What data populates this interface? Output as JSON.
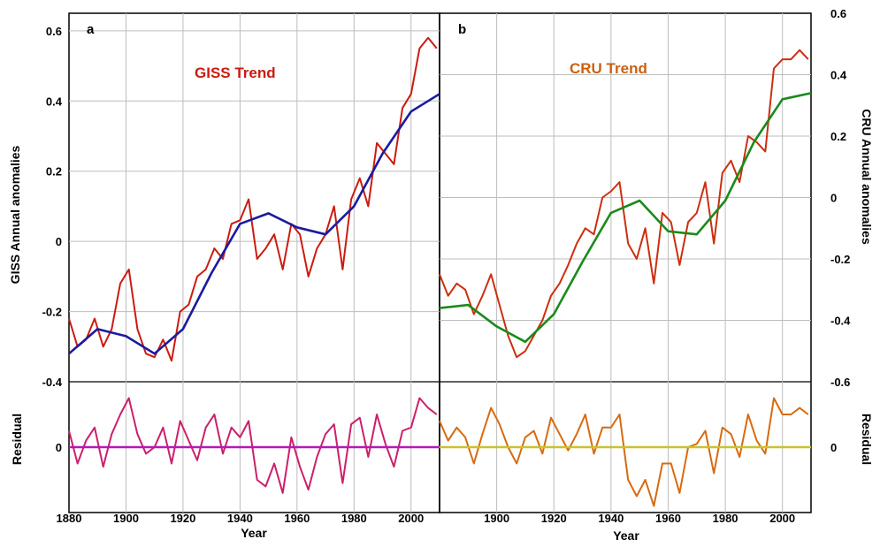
{
  "chart_data": [
    {
      "panel": "a",
      "type": "line",
      "title": "GISS Trend",
      "xlabel": "Year",
      "ylabel": "GISS Annual anomalies",
      "xlim": [
        1880,
        2010
      ],
      "ylim": [
        -0.4,
        0.65
      ],
      "x_ticks": [
        1880,
        1900,
        1920,
        1940,
        1960,
        1980,
        2000
      ],
      "y_ticks": [
        -0.4,
        -0.2,
        0,
        0.2,
        0.4,
        0.6
      ],
      "y_tick_labels": [
        "-0.4",
        "-0.2",
        "0",
        "0.2",
        "0.4",
        "0.6"
      ],
      "grid": true,
      "series": [
        {
          "role": "annual",
          "color": "#cc1b10",
          "x": [
            1880,
            1883,
            1886,
            1889,
            1892,
            1895,
            1898,
            1901,
            1904,
            1907,
            1910,
            1913,
            1916,
            1919,
            1922,
            1925,
            1928,
            1931,
            1934,
            1937,
            1940,
            1943,
            1946,
            1949,
            1952,
            1955,
            1958,
            1961,
            1964,
            1967,
            1970,
            1973,
            1976,
            1979,
            1982,
            1985,
            1988,
            1991,
            1994,
            1997,
            2000,
            2003,
            2006,
            2009
          ],
          "values": [
            -0.22,
            -0.3,
            -0.28,
            -0.22,
            -0.3,
            -0.25,
            -0.12,
            -0.08,
            -0.25,
            -0.32,
            -0.33,
            -0.28,
            -0.34,
            -0.2,
            -0.18,
            -0.1,
            -0.08,
            -0.02,
            -0.05,
            0.05,
            0.06,
            0.12,
            -0.05,
            -0.02,
            0.02,
            -0.08,
            0.05,
            0.02,
            -0.1,
            -0.02,
            0.02,
            0.1,
            -0.08,
            0.12,
            0.18,
            0.1,
            0.28,
            0.25,
            0.22,
            0.38,
            0.42,
            0.55,
            0.58,
            0.55
          ]
        },
        {
          "role": "trend",
          "color": "#1b1b9e",
          "x": [
            1880,
            1890,
            1900,
            1910,
            1920,
            1930,
            1940,
            1950,
            1960,
            1970,
            1980,
            1990,
            2000,
            2010
          ],
          "values": [
            -0.32,
            -0.25,
            -0.27,
            -0.32,
            -0.25,
            -0.09,
            0.05,
            0.08,
            0.04,
            0.02,
            0.1,
            0.25,
            0.37,
            0.42
          ]
        }
      ]
    },
    {
      "panel": "a-residual",
      "type": "line",
      "xlabel": "Year",
      "ylabel": "Residual",
      "xlim": [
        1880,
        2010
      ],
      "ylim": [
        -0.2,
        0.2
      ],
      "y_ticks": [
        0
      ],
      "y_tick_labels": [
        "0"
      ],
      "series": [
        {
          "role": "residual",
          "color": "#cc1f6b",
          "x": [
            1880,
            1883,
            1886,
            1889,
            1892,
            1895,
            1898,
            1901,
            1904,
            1907,
            1910,
            1913,
            1916,
            1919,
            1922,
            1925,
            1928,
            1931,
            1934,
            1937,
            1940,
            1943,
            1946,
            1949,
            1952,
            1955,
            1958,
            1961,
            1964,
            1967,
            1970,
            1973,
            1976,
            1979,
            1982,
            1985,
            1988,
            1991,
            1994,
            1997,
            2000,
            2003,
            2006,
            2009
          ],
          "values": [
            0.05,
            -0.05,
            0.02,
            0.06,
            -0.06,
            0.04,
            0.1,
            0.15,
            0.04,
            -0.02,
            0.0,
            0.06,
            -0.05,
            0.08,
            0.02,
            -0.04,
            0.06,
            0.1,
            -0.02,
            0.06,
            0.03,
            0.08,
            -0.1,
            -0.12,
            -0.05,
            -0.14,
            0.03,
            -0.06,
            -0.13,
            -0.03,
            0.04,
            0.07,
            -0.11,
            0.07,
            0.09,
            -0.03,
            0.1,
            0.01,
            -0.06,
            0.05,
            0.06,
            0.15,
            0.12,
            0.1
          ]
        },
        {
          "role": "zero-line",
          "color": "#b51ab5",
          "x": [
            1880,
            2010
          ],
          "values": [
            0,
            0
          ]
        }
      ]
    },
    {
      "panel": "b",
      "type": "line",
      "title": "CRU Trend",
      "xlabel": "Year",
      "ylabel": "CRU Annual anomalies",
      "xlim": [
        1880,
        2010
      ],
      "ylim": [
        -0.6,
        0.6
      ],
      "x_ticks": [
        1900,
        1920,
        1940,
        1960,
        1980,
        2000
      ],
      "y_ticks": [
        -0.6,
        -0.4,
        -0.2,
        0,
        0.2,
        0.4,
        0.6
      ],
      "y_tick_labels": [
        "-0.6",
        "-0.4",
        "-0.2",
        "0",
        "0.2",
        "0.4",
        "0.6"
      ],
      "grid": true,
      "series": [
        {
          "role": "annual",
          "color": "#cc2f10",
          "x": [
            1880,
            1883,
            1886,
            1889,
            1892,
            1895,
            1898,
            1901,
            1904,
            1907,
            1910,
            1913,
            1916,
            1919,
            1922,
            1925,
            1928,
            1931,
            1934,
            1937,
            1940,
            1943,
            1946,
            1949,
            1952,
            1955,
            1958,
            1961,
            1964,
            1967,
            1970,
            1973,
            1976,
            1979,
            1982,
            1985,
            1988,
            1991,
            1994,
            1997,
            2000,
            2003,
            2006,
            2009
          ],
          "values": [
            -0.25,
            -0.32,
            -0.28,
            -0.3,
            -0.38,
            -0.32,
            -0.25,
            -0.35,
            -0.45,
            -0.52,
            -0.5,
            -0.45,
            -0.4,
            -0.32,
            -0.28,
            -0.22,
            -0.15,
            -0.1,
            -0.12,
            0.0,
            0.02,
            0.05,
            -0.15,
            -0.2,
            -0.1,
            -0.28,
            -0.05,
            -0.08,
            -0.22,
            -0.08,
            -0.05,
            0.05,
            -0.15,
            0.08,
            0.12,
            0.05,
            0.2,
            0.18,
            0.15,
            0.42,
            0.45,
            0.45,
            0.48,
            0.45
          ]
        },
        {
          "role": "trend",
          "color": "#1b8a1b",
          "x": [
            1880,
            1890,
            1900,
            1910,
            1920,
            1930,
            1940,
            1950,
            1960,
            1970,
            1980,
            1990,
            2000,
            2010
          ],
          "values": [
            -0.36,
            -0.35,
            -0.42,
            -0.47,
            -0.38,
            -0.21,
            -0.05,
            -0.01,
            -0.11,
            -0.12,
            -0.01,
            0.18,
            0.32,
            0.34
          ]
        }
      ]
    },
    {
      "panel": "b-residual",
      "type": "line",
      "xlabel": "Year",
      "ylabel": "Residual",
      "xlim": [
        1880,
        2010
      ],
      "ylim": [
        -0.2,
        0.2
      ],
      "y_ticks": [
        0
      ],
      "y_tick_labels": [
        "0"
      ],
      "series": [
        {
          "role": "residual",
          "color": "#d86a10",
          "x": [
            1880,
            1883,
            1886,
            1889,
            1892,
            1895,
            1898,
            1901,
            1904,
            1907,
            1910,
            1913,
            1916,
            1919,
            1922,
            1925,
            1928,
            1931,
            1934,
            1937,
            1940,
            1943,
            1946,
            1949,
            1952,
            1955,
            1958,
            1961,
            1964,
            1967,
            1970,
            1973,
            1976,
            1979,
            1982,
            1985,
            1988,
            1991,
            1994,
            1997,
            2000,
            2003,
            2006,
            2009
          ],
          "values": [
            0.08,
            0.02,
            0.06,
            0.03,
            -0.05,
            0.04,
            0.12,
            0.07,
            0.0,
            -0.05,
            0.03,
            0.05,
            -0.02,
            0.09,
            0.04,
            -0.01,
            0.04,
            0.1,
            -0.02,
            0.06,
            0.06,
            0.1,
            -0.1,
            -0.15,
            -0.1,
            -0.18,
            -0.05,
            -0.05,
            -0.14,
            0.0,
            0.01,
            0.05,
            -0.08,
            0.06,
            0.04,
            -0.03,
            0.1,
            0.02,
            -0.02,
            0.15,
            0.1,
            0.1,
            0.12,
            0.1
          ]
        },
        {
          "role": "zero-line",
          "color": "#c9c32a",
          "x": [
            1880,
            2010
          ],
          "values": [
            0,
            0
          ]
        }
      ]
    }
  ]
}
